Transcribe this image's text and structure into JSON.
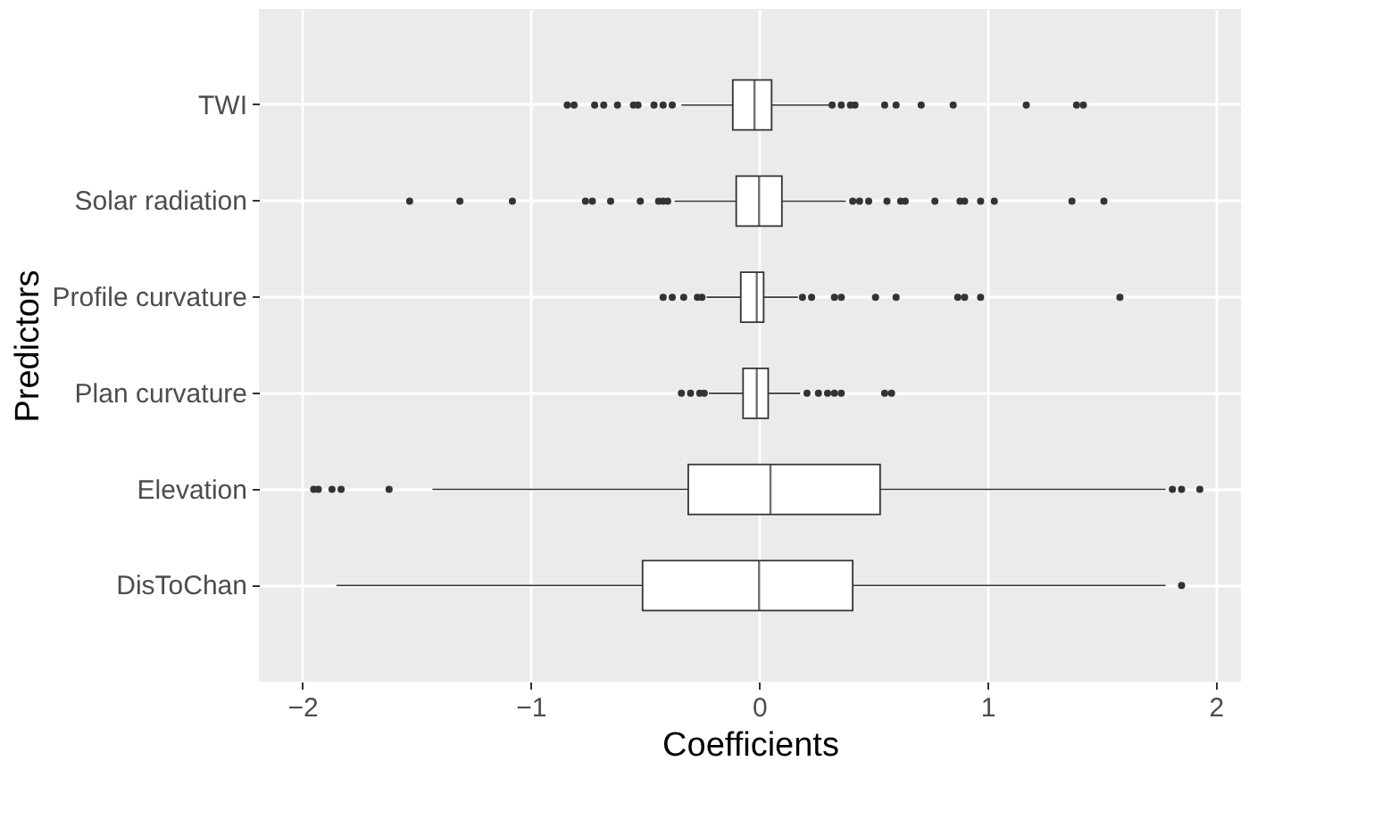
{
  "chart_data": {
    "type": "box",
    "orientation": "horizontal",
    "xlabel": "Coefficients",
    "ylabel": "Predictors",
    "categories": [
      "TWI",
      "Solar radiation",
      "Profile curvature",
      "Plan curvature",
      "Elevation",
      "DisToChan"
    ],
    "xlim": [
      -2.19,
      2.11
    ],
    "xticks": [
      -2,
      -1,
      0,
      1,
      2
    ],
    "grid": true,
    "boxes": [
      {
        "low": -0.34,
        "q1": -0.115,
        "median": -0.02,
        "q3": 0.055,
        "high": 0.31,
        "outliers": [
          -0.84,
          -0.81,
          -0.72,
          -0.68,
          -0.62,
          -0.55,
          -0.53,
          -0.46,
          -0.42,
          -0.38,
          0.32,
          0.36,
          0.4,
          0.42,
          0.55,
          0.6,
          0.71,
          0.85,
          1.17,
          1.39,
          1.42
        ]
      },
      {
        "low": -0.37,
        "q1": -0.1,
        "median": 0.0,
        "q3": 0.1,
        "high": 0.38,
        "outliers": [
          -1.53,
          -1.31,
          -1.08,
          -0.76,
          -0.73,
          -0.65,
          -0.52,
          -0.44,
          -0.42,
          -0.4,
          0.41,
          0.44,
          0.48,
          0.56,
          0.62,
          0.64,
          0.77,
          0.88,
          0.9,
          0.97,
          1.03,
          1.37,
          1.51
        ]
      },
      {
        "low": -0.23,
        "q1": -0.08,
        "median": -0.01,
        "q3": 0.02,
        "high": 0.17,
        "outliers": [
          -0.42,
          -0.38,
          -0.33,
          -0.27,
          -0.25,
          0.19,
          0.23,
          0.33,
          0.36,
          0.51,
          0.6,
          0.87,
          0.9,
          0.97,
          1.58
        ]
      },
      {
        "low": -0.22,
        "q1": -0.07,
        "median": -0.01,
        "q3": 0.04,
        "high": 0.18,
        "outliers": [
          -0.34,
          -0.3,
          -0.26,
          -0.24,
          0.21,
          0.26,
          0.3,
          0.33,
          0.36,
          0.55,
          0.58
        ]
      },
      {
        "low": -1.43,
        "q1": -0.31,
        "median": 0.05,
        "q3": 0.53,
        "high": 1.78,
        "outliers": [
          -1.95,
          -1.93,
          -1.87,
          -1.83,
          -1.62,
          1.81,
          1.85,
          1.93
        ]
      },
      {
        "low": -1.85,
        "q1": -0.51,
        "median": 0.0,
        "q3": 0.41,
        "high": 1.78,
        "outliers": [
          1.85
        ]
      }
    ]
  }
}
